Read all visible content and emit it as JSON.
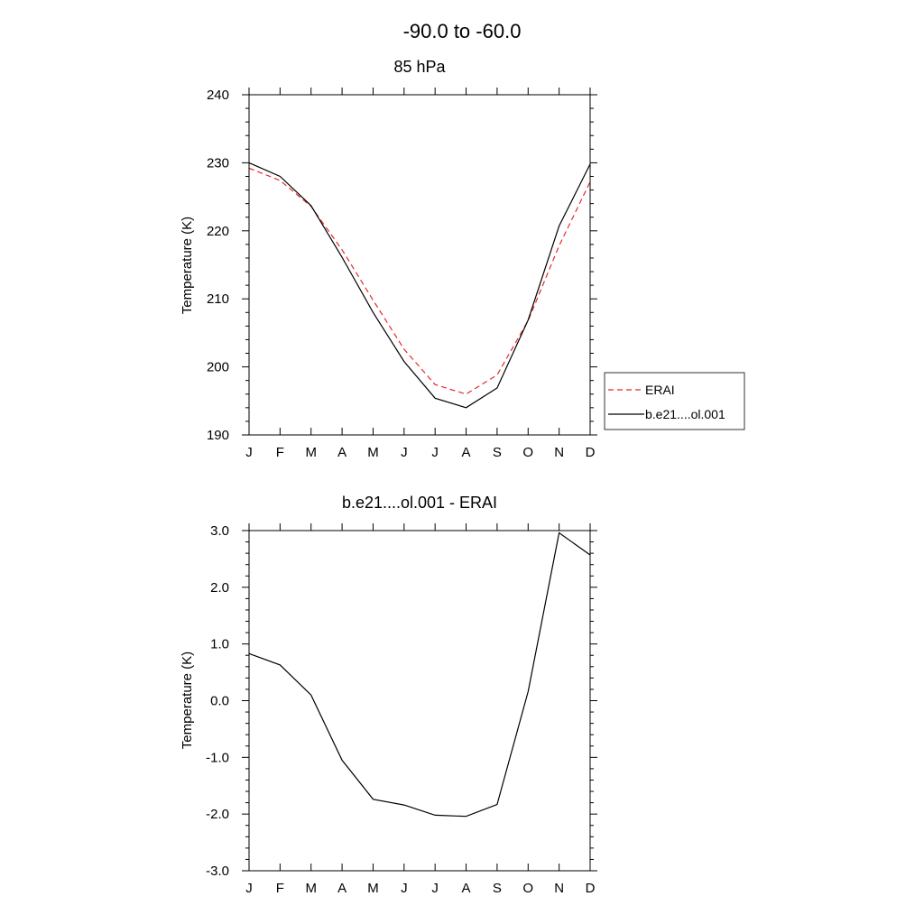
{
  "figure": {
    "title": "-90.0 to -60.0"
  },
  "colors": {
    "model": "#000000",
    "erai": "#e8262a"
  },
  "chart_data": [
    {
      "type": "line",
      "title": "85 hPa",
      "xlabel": "",
      "ylabel": "Temperature (K)",
      "categories": [
        "J",
        "F",
        "M",
        "A",
        "M",
        "J",
        "J",
        "A",
        "S",
        "O",
        "N",
        "D"
      ],
      "ylim": [
        190,
        240
      ],
      "yticks": [
        "190",
        "200",
        "210",
        "220",
        "230",
        "240"
      ],
      "ytick_values": [
        190,
        200,
        210,
        220,
        230,
        240
      ],
      "grid": false,
      "legend": "right",
      "series": [
        {
          "name": "ERAI",
          "style": "dashed",
          "color": "#e8262a",
          "values": [
            229.2,
            227.4,
            223.6,
            217.2,
            209.8,
            202.6,
            197.4,
            196.0,
            198.8,
            206.8,
            217.8,
            227.2
          ]
        },
        {
          "name": "b.e21....ol.001",
          "style": "solid",
          "color": "#000000",
          "values": [
            230.0,
            228.0,
            223.7,
            216.1,
            208.0,
            200.8,
            195.4,
            194.0,
            196.9,
            206.9,
            220.7,
            229.8
          ]
        }
      ]
    },
    {
      "type": "line",
      "title": "b.e21....ol.001 - ERAI",
      "xlabel": "",
      "ylabel": "Temperature (K)",
      "categories": [
        "J",
        "F",
        "M",
        "A",
        "M",
        "J",
        "J",
        "A",
        "S",
        "O",
        "N",
        "D"
      ],
      "ylim": [
        -3.0,
        3.0
      ],
      "yticks": [
        "-3.0",
        "-2.0",
        "-1.0",
        "0.0",
        "1.0",
        "2.0",
        "3.0"
      ],
      "ytick_values": [
        -3,
        -2,
        -1,
        0,
        1,
        2,
        3
      ],
      "grid": false,
      "legend": "none",
      "series": [
        {
          "style": "solid",
          "color": "#000000",
          "values": [
            0.83,
            0.63,
            0.1,
            -1.05,
            -1.74,
            -1.84,
            -2.02,
            -2.04,
            -1.83,
            0.16,
            2.96,
            2.57
          ]
        }
      ]
    }
  ]
}
